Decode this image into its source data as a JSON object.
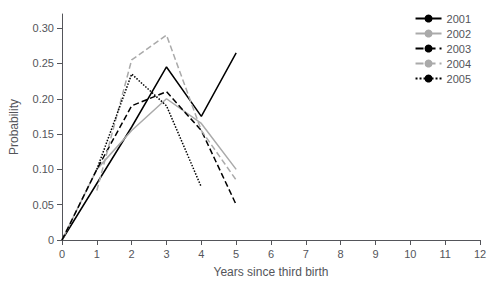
{
  "chart_data": {
    "type": "line",
    "xlabel": "Years since third birth",
    "ylabel": "Probability",
    "series": [
      {
        "name": "2001",
        "color": "black",
        "line_style": "solid",
        "x": [
          0,
          1,
          2,
          3,
          4,
          5
        ],
        "values": [
          0.0,
          0.08,
          0.16,
          0.245,
          0.175,
          0.265
        ]
      },
      {
        "name": "2002",
        "color": "#aaaaaa",
        "line_style": "solid",
        "x": [
          0,
          1,
          2,
          3,
          4,
          5
        ],
        "values": [
          0.0,
          0.1,
          0.155,
          0.2,
          0.165,
          0.1
        ]
      },
      {
        "name": "2003",
        "color": "black",
        "line_style": "dashed",
        "x": [
          0,
          1,
          2,
          3,
          4,
          5
        ],
        "values": [
          0.0,
          0.1,
          0.19,
          0.21,
          0.155,
          0.05
        ]
      },
      {
        "name": "2004",
        "color": "#aaaaaa",
        "line_style": "dashed",
        "x": [
          1,
          2,
          3,
          4,
          5
        ],
        "values": [
          0.07,
          0.255,
          0.29,
          0.155,
          0.085
        ]
      },
      {
        "name": "2005",
        "color": "black",
        "line_style": "dotted",
        "x": [
          1,
          2,
          3,
          4
        ],
        "values": [
          0.1,
          0.235,
          0.19,
          0.075
        ]
      }
    ],
    "xlim": [
      0,
      12
    ],
    "xticks": [
      0,
      1,
      2,
      3,
      4,
      5,
      6,
      7,
      8,
      9,
      10,
      11,
      12
    ],
    "ylim": [
      0,
      0.32
    ],
    "yticks": [
      0,
      0.05,
      {
        "value": 0.1,
        "label": "0.10"
      },
      0.15,
      {
        "value": 0.2,
        "label": "0.20"
      },
      0.25,
      {
        "value": 0.3,
        "label": "0.30"
      }
    ],
    "legend": "upper right",
    "grid": false
  }
}
